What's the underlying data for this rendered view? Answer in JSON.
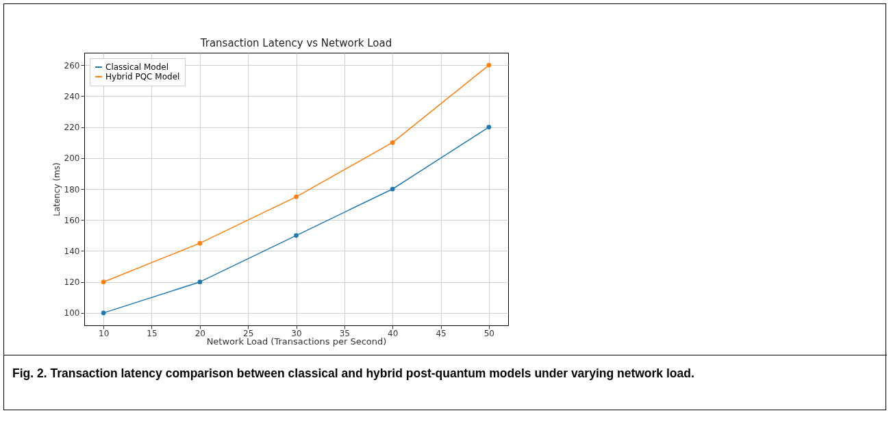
{
  "chart_data": {
    "type": "line",
    "title": "Transaction Latency vs Network Load",
    "xlabel": "Network Load (Transactions per Second)",
    "ylabel": "Latency (ms)",
    "x": [
      10,
      20,
      30,
      40,
      50
    ],
    "series": [
      {
        "name": "Classical Model",
        "color": "#1f77b4",
        "values": [
          100,
          120,
          150,
          180,
          220
        ]
      },
      {
        "name": "Hybrid PQC Model",
        "color": "#ff7f0e",
        "values": [
          120,
          145,
          175,
          210,
          260
        ]
      }
    ],
    "xlim": [
      8,
      52
    ],
    "xticks": [
      10,
      15,
      20,
      25,
      30,
      35,
      40,
      45,
      50
    ],
    "ylim": [
      92,
      268
    ],
    "yticks": [
      100,
      120,
      140,
      160,
      180,
      200,
      220,
      240,
      260
    ],
    "grid": true,
    "legend": "top left",
    "marker": "circle",
    "line_style": "solid",
    "annotations": [
      "Fig. 2. Transaction latency comparison between classical and hybrid post-quantum models under varying network load."
    ]
  }
}
